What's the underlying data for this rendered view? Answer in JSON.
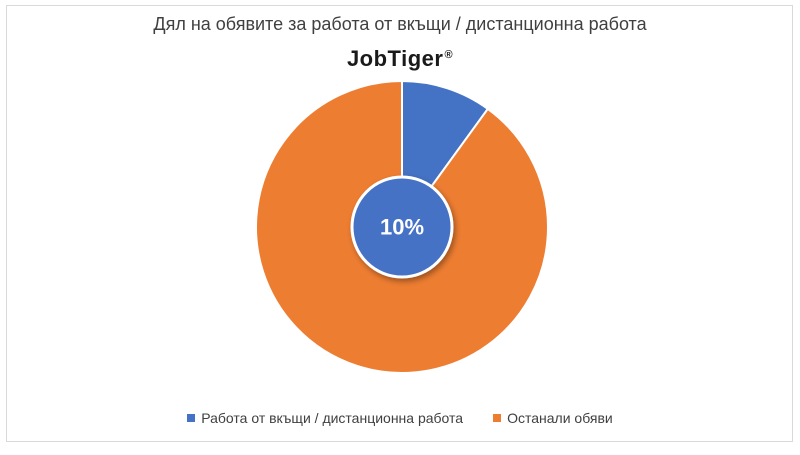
{
  "chart_data": {
    "type": "pie",
    "title": "Дял на обявите за работа от вкъщи / дистанционна работа",
    "logo_text": "JobTiger",
    "logo_mark": "®",
    "slices": [
      {
        "name": "Работа от вкъщи / дистанционна работа",
        "value": 10,
        "color": "#4472c4"
      },
      {
        "name": "Останали обяви",
        "value": 90,
        "color": "#ed7d31"
      }
    ],
    "center_label": "10%",
    "legend_position": "bottom"
  }
}
